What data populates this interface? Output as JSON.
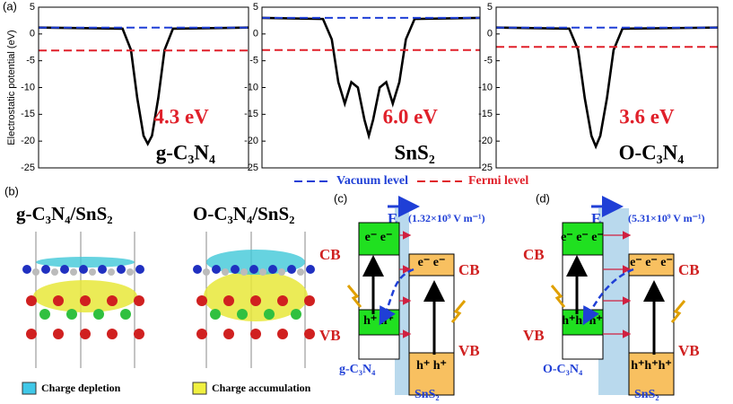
{
  "chart_data": [
    {
      "type": "line",
      "ylabel": "Electrostatic potential (eV)",
      "ylim": [
        -25,
        5
      ],
      "yticks": [
        -25,
        -20,
        -15,
        -10,
        -5,
        0,
        5
      ],
      "xlim": [
        0,
        100
      ],
      "annotation": "4.3 eV",
      "label": "g-C₃N₄",
      "series": [
        {
          "color": "#000000",
          "style": "solid",
          "x": [
            0,
            40,
            44,
            47,
            50,
            52,
            54,
            57,
            60,
            64,
            100
          ],
          "values": [
            1.2,
            1.0,
            -3,
            -12,
            -19,
            -20.5,
            -19,
            -12,
            -3,
            1.0,
            1.2
          ]
        },
        {
          "name": "Vacuum level",
          "color": "#1f3fd6",
          "style": "dashed",
          "x": [
            0,
            100
          ],
          "values": [
            1.2,
            1.2
          ]
        },
        {
          "name": "Fermi level",
          "color": "#e0202a",
          "style": "dashed",
          "x": [
            0,
            100
          ],
          "values": [
            -3.1,
            -3.1
          ]
        }
      ]
    },
    {
      "type": "line",
      "ylim": [
        -25,
        5
      ],
      "yticks": [
        -25,
        -20,
        -15,
        -10,
        -5,
        0,
        5
      ],
      "xlim": [
        0,
        100
      ],
      "annotation": "6.0 eV",
      "label": "SnS₂",
      "series": [
        {
          "color": "#000000",
          "style": "solid",
          "x": [
            0,
            28,
            32,
            35,
            38,
            41,
            44,
            47,
            49,
            51,
            54,
            57,
            60,
            63,
            66,
            70,
            100
          ],
          "values": [
            3,
            2.8,
            -1,
            -9,
            -13,
            -9,
            -10,
            -16,
            -19,
            -16,
            -10,
            -9,
            -13,
            -9,
            -1,
            2.8,
            3
          ]
        },
        {
          "color": "#1f3fd6",
          "style": "dashed",
          "x": [
            0,
            100
          ],
          "values": [
            3,
            3
          ]
        },
        {
          "color": "#e0202a",
          "style": "dashed",
          "x": [
            0,
            100
          ],
          "values": [
            -3,
            -3
          ]
        }
      ]
    },
    {
      "type": "line",
      "ylim": [
        -25,
        5
      ],
      "yticks": [
        -25,
        -20,
        -15,
        -10,
        -5,
        0,
        5
      ],
      "xlim": [
        0,
        100
      ],
      "annotation": "3.6 eV",
      "label": "O-C₃N₄",
      "series": [
        {
          "color": "#000000",
          "style": "solid",
          "x": [
            0,
            33,
            37,
            40,
            43,
            45,
            47,
            50,
            53,
            57,
            100
          ],
          "values": [
            1.2,
            1.0,
            -3,
            -12,
            -19,
            -21,
            -19,
            -12,
            -3,
            1.0,
            1.2
          ]
        },
        {
          "color": "#1f3fd6",
          "style": "dashed",
          "x": [
            0,
            100
          ],
          "values": [
            1.2,
            1.2
          ]
        },
        {
          "color": "#e0202a",
          "style": "dashed",
          "x": [
            0,
            100
          ],
          "values": [
            -2.4,
            -2.4
          ]
        }
      ]
    }
  ],
  "figure": {
    "panel_labels": [
      "(a)",
      "(b)",
      "(c)",
      "(d)"
    ],
    "b": {
      "titles": [
        "g-C₃N₄/SnS₂",
        "O-C₃N₄/SnS₂"
      ],
      "legend": [
        "Charge depletion",
        "Charge accumulation"
      ]
    },
    "c": {
      "field": "E",
      "strength": "(1.32×10⁹ V m⁻¹)",
      "left_cb": "CB",
      "left_vb": "VB",
      "right_cb": "CB",
      "right_vb": "VB",
      "electrons_left": "e⁻ e⁻",
      "holes_left": "h⁺ h⁺",
      "electrons_right": "e⁻ e⁻",
      "holes_right": "h⁺ h⁺",
      "left_material": "g-C₃N₄",
      "right_material": "SnS₂"
    },
    "d": {
      "field": "E",
      "strength": "(5.31×10⁹ V m⁻¹)",
      "left_cb": "CB",
      "left_vb": "VB",
      "right_cb": "CB",
      "right_vb": "VB",
      "electrons_left": "e⁻ e⁻ e⁻",
      "holes_left": "h⁺h⁺h⁺",
      "electrons_right": "e⁻ e⁻ e⁻",
      "holes_right": "h⁺h⁺h⁺",
      "left_material": "O-C₃N₄",
      "right_material": "SnS₂"
    }
  }
}
